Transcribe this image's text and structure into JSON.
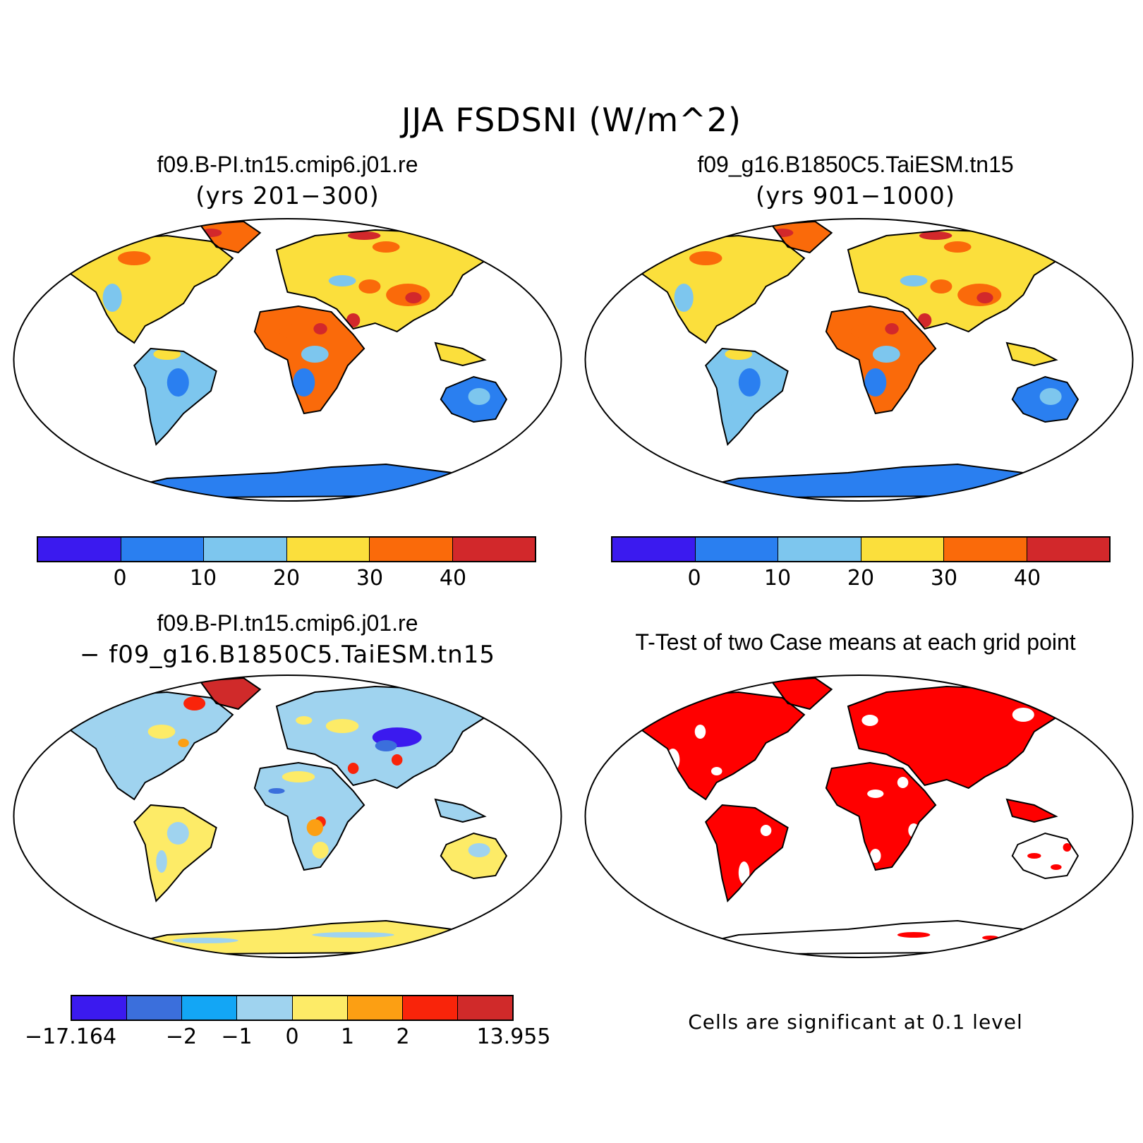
{
  "figure": {
    "title": "JJA FSDSNI (W/m^2)"
  },
  "panels": [
    {
      "title": "f09.B-PI.tn15.cmip6.j01.re",
      "subtitle": "(yrs 201−300)",
      "colorbar": {
        "colors": [
          "#3b1aef",
          "#2a7ff0",
          "#7dc6ee",
          "#fbdf3c",
          "#fa6a0a",
          "#d2282b"
        ],
        "labels": [
          "0",
          "10",
          "20",
          "30",
          "40"
        ]
      }
    },
    {
      "title": "f09_g16.B1850C5.TaiESM.tn15",
      "subtitle": "(yrs 901−1000)",
      "colorbar": {
        "colors": [
          "#3b1aef",
          "#2a7ff0",
          "#7dc6ee",
          "#fbdf3c",
          "#fa6a0a",
          "#d2282b"
        ],
        "labels": [
          "0",
          "10",
          "20",
          "30",
          "40"
        ]
      }
    },
    {
      "title": "f09.B-PI.tn15.cmip6.j01.re",
      "subtitle": "− f09_g16.B1850C5.TaiESM.tn15",
      "colorbar": {
        "colors": [
          "#3b1aef",
          "#3b6fdc",
          "#13a6f5",
          "#9fd3ef",
          "#fdeb67",
          "#fc9f13",
          "#f9240a",
          "#d02a2a"
        ],
        "labels": [
          "−17.164",
          "−2",
          "−1",
          "0",
          "1",
          "2",
          "13.955"
        ]
      }
    },
    {
      "title": "T-Test of two Case means at each grid point",
      "note": "Cells are significant at 0.1 level",
      "fill_color": "#ff0000"
    }
  ]
}
